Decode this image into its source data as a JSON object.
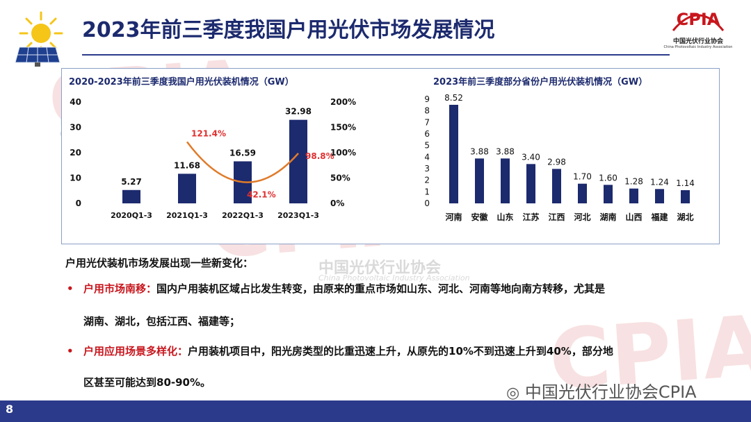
{
  "header": {
    "title": "2023年前三季度我国户用光伏市场发展情况",
    "logo_text": "CPIA",
    "logo_subtitle_cn": "中国光伏行业协会",
    "logo_subtitle_en": "China Photovoltaic Industry Association"
  },
  "chart_data": [
    {
      "type": "bar",
      "title": "2020-2023年前三季度我国户用光伏装机情况（GW）",
      "categories": [
        "2020Q1-3",
        "2021Q1-3",
        "2022Q1-3",
        "2023Q1-3"
      ],
      "series": [
        {
          "values": [
            5.27,
            11.68,
            16.59,
            32.98
          ],
          "color": "#1c2a6e"
        }
      ],
      "value_labels": [
        "5.27",
        "11.68",
        "16.59",
        "32.98"
      ],
      "secondary_series": {
        "type": "line",
        "values": [
          121.4,
          42.1,
          98.8
        ],
        "labels": [
          "121.4%",
          "42.1%",
          "98.8%"
        ],
        "points_at": [
          "2021Q1-3",
          "2022Q1-3",
          "2023Q1-3"
        ],
        "color": "#e07b2a",
        "label_color": "#e03030"
      },
      "ylim": [
        0,
        40
      ],
      "yticks": [
        "0",
        "10",
        "20",
        "30",
        "40"
      ],
      "y2lim": [
        0,
        200
      ],
      "y2ticks": [
        "0%",
        "50%",
        "100%",
        "150%",
        "200%"
      ],
      "grid": false
    },
    {
      "type": "bar",
      "title": "2023年前三季度部分省份户用光伏装机情况（GW）",
      "categories": [
        "河南",
        "安徽",
        "山东",
        "江苏",
        "江西",
        "河北",
        "湖南",
        "山西",
        "福建",
        "湖北"
      ],
      "series": [
        {
          "values": [
            8.52,
            3.88,
            3.88,
            3.4,
            2.98,
            1.7,
            1.6,
            1.28,
            1.24,
            1.14
          ],
          "color": "#1c2a6e"
        }
      ],
      "value_labels": [
        "8.52",
        "3.88",
        "3.88",
        "3.40",
        "2.98",
        "1.70",
        "1.60",
        "1.28",
        "1.24",
        "1.14"
      ],
      "ylim": [
        0,
        9
      ],
      "yticks": [
        "0",
        "1",
        "2",
        "3",
        "4",
        "5",
        "6",
        "7",
        "8",
        "9"
      ],
      "grid": false
    }
  ],
  "text": {
    "intro": "户用光伏装机市场发展出现一些新变化：",
    "bullet1_heading": "户用市场南移：",
    "bullet1_body": "国内户用装机区域占比发生转变，由原来的重点市场如山东、河北、河南等地向南方转移，尤其是",
    "bullet1_cont": "湖南、湖北，包括江西、福建等；",
    "bullet2_heading": "户用应用场景多样化：",
    "bullet2_body": "户用装机项目中，阳光房类型的比重迅速上升，从原先的10%不到迅速上升到40%，部分地",
    "bullet2_cont": "区甚至可能达到80-90%。"
  },
  "watermarks": {
    "cn": "中国光伏行业协会",
    "en": "China Photovoltaic Industry Association",
    "cpia": "CPIA"
  },
  "footer": {
    "page_number": "8",
    "wechat_label": "中国光伏行业协会CPIA"
  },
  "colors": {
    "accent": "#1c2a6e",
    "bar": "#1c2a6e",
    "line": "#e07b2a",
    "highlight": "#c8161d",
    "footer": "#2b3a8a"
  }
}
